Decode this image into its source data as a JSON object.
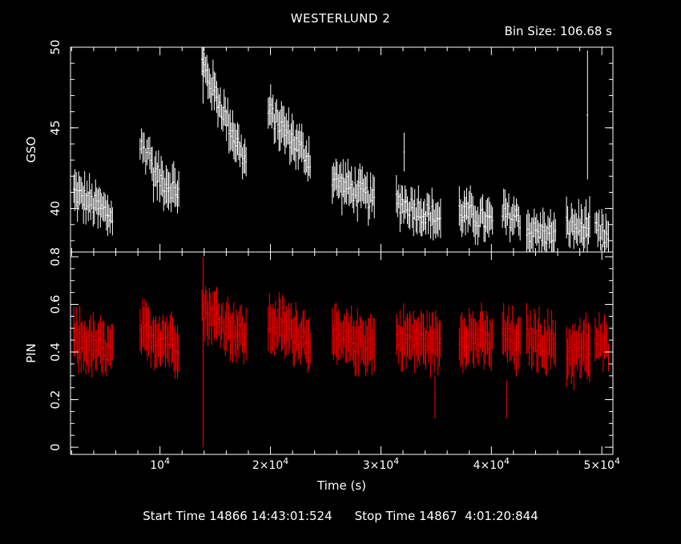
{
  "header": {
    "title": "WESTERLUND 2",
    "bin_size": "Bin Size: 106.68 s"
  },
  "footer": {
    "start_time": "Start Time 14866 14:43:01:524",
    "stop_time": "Stop Time 14867  4:01:20:844"
  },
  "colors": {
    "gso": "#ffffff",
    "pin": "#ff0000",
    "axes": "#ffffff",
    "background": "#000000"
  },
  "chart_data": {
    "type": "scatter",
    "title": "WESTERLUND 2",
    "subtitle": "Bin Size: 106.68 s",
    "xlabel": "Time (s)",
    "xlim": [
      1900,
      51000
    ],
    "x_ticks": [
      {
        "value": 10000,
        "base": "10",
        "exp": "4",
        "mult": ""
      },
      {
        "value": 20000,
        "base": "10",
        "exp": "4",
        "mult": "2×"
      },
      {
        "value": 30000,
        "base": "10",
        "exp": "4",
        "mult": "3×"
      },
      {
        "value": 40000,
        "base": "10",
        "exp": "4",
        "mult": "4×"
      },
      {
        "value": 50000,
        "base": "10",
        "exp": "4",
        "mult": "5×"
      }
    ],
    "panels": [
      {
        "name": "GSO",
        "ylabel": "GSO",
        "ylim": [
          37.3,
          50.0
        ],
        "y_ticks": [
          40,
          45,
          50
        ],
        "color": "#ffffff",
        "segments": [
          {
            "x_start": 2200,
            "x_end": 5700,
            "y_start": 41.0,
            "y_end": 39.5,
            "err": 1.0
          },
          {
            "x_start": 8200,
            "x_end": 9200,
            "y_start": 43.8,
            "y_end": 43.4,
            "err": 0.8
          },
          {
            "x_start": 9300,
            "x_end": 11700,
            "y_start": 42.2,
            "y_end": 41.0,
            "err": 1.0
          },
          {
            "x_start": 13800,
            "x_end": 17800,
            "y_start": 49.0,
            "y_end": 42.8,
            "err": 1.0
          },
          {
            "x_start": 19800,
            "x_end": 23600,
            "y_start": 46.0,
            "y_end": 43.0,
            "err": 1.0
          },
          {
            "x_start": 25600,
            "x_end": 29400,
            "y_start": 41.8,
            "y_end": 40.5,
            "err": 1.0
          },
          {
            "x_start": 31400,
            "x_end": 35400,
            "y_start": 40.5,
            "y_end": 39.3,
            "err": 1.0
          },
          {
            "x_start": 37100,
            "x_end": 40100,
            "y_start": 39.8,
            "y_end": 39.1,
            "err": 1.0
          },
          {
            "x_start": 41000,
            "x_end": 42600,
            "y_start": 39.6,
            "y_end": 39.4,
            "err": 1.0
          },
          {
            "x_start": 43200,
            "x_end": 45800,
            "y_start": 38.6,
            "y_end": 38.3,
            "err": 1.0
          },
          {
            "x_start": 46800,
            "x_end": 48900,
            "y_start": 38.9,
            "y_end": 38.8,
            "err": 1.0
          },
          {
            "x_start": 49400,
            "x_end": 50600,
            "y_start": 38.5,
            "y_end": 38.2,
            "err": 0.9
          }
        ],
        "outliers": [
          {
            "x": 48700,
            "y": 45.8,
            "err": 4.0
          },
          {
            "x": 13900,
            "y": 48.5,
            "err": 2.0
          },
          {
            "x": 32100,
            "y": 43.5,
            "err": 1.2
          }
        ]
      },
      {
        "name": "PIN",
        "ylabel": "PIN",
        "ylim": [
          -0.03,
          0.82
        ],
        "y_ticks": [
          0,
          0.2,
          0.4,
          0.6,
          0.8
        ],
        "color": "#ff0000",
        "segments": [
          {
            "x_start": 2200,
            "x_end": 5700,
            "y_start": 0.45,
            "y_end": 0.4,
            "err": 0.09
          },
          {
            "x_start": 8200,
            "x_end": 11700,
            "y_start": 0.48,
            "y_end": 0.44,
            "err": 0.09
          },
          {
            "x_start": 13800,
            "x_end": 17800,
            "y_start": 0.58,
            "y_end": 0.46,
            "err": 0.09
          },
          {
            "x_start": 19800,
            "x_end": 23600,
            "y_start": 0.52,
            "y_end": 0.46,
            "err": 0.09
          },
          {
            "x_start": 25600,
            "x_end": 29400,
            "y_start": 0.45,
            "y_end": 0.44,
            "err": 0.09
          },
          {
            "x_start": 31400,
            "x_end": 35400,
            "y_start": 0.46,
            "y_end": 0.44,
            "err": 0.09
          },
          {
            "x_start": 37100,
            "x_end": 40100,
            "y_start": 0.47,
            "y_end": 0.44,
            "err": 0.09
          },
          {
            "x_start": 41000,
            "x_end": 42600,
            "y_start": 0.47,
            "y_end": 0.43,
            "err": 0.09
          },
          {
            "x_start": 43200,
            "x_end": 45800,
            "y_start": 0.46,
            "y_end": 0.43,
            "err": 0.09
          },
          {
            "x_start": 46800,
            "x_end": 48900,
            "y_start": 0.4,
            "y_end": 0.41,
            "err": 0.1
          },
          {
            "x_start": 49400,
            "x_end": 50600,
            "y_start": 0.44,
            "y_end": 0.42,
            "err": 0.08
          }
        ],
        "outliers": [
          {
            "x": 13900,
            "y": 0.4,
            "err": 0.4
          },
          {
            "x": 41400,
            "y": 0.2,
            "err": 0.08
          },
          {
            "x": 34900,
            "y": 0.21,
            "err": 0.09
          }
        ]
      }
    ]
  }
}
